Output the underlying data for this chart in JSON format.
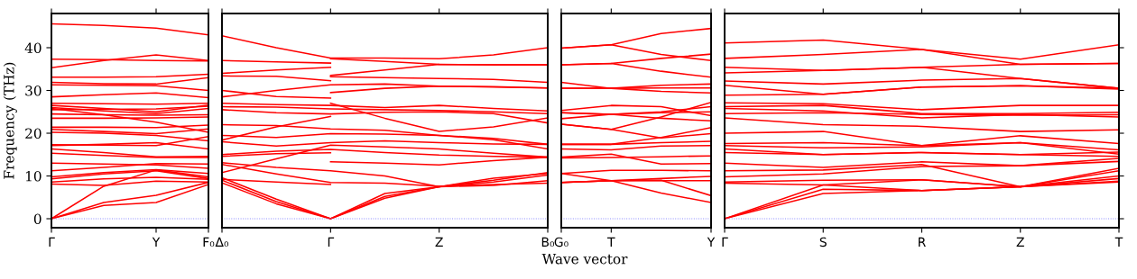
{
  "chart_data": [
    {
      "type": "line",
      "ylabel": "Frequency (THz)",
      "categories": [
        "Γ",
        null,
        "Y",
        "F₀"
      ],
      "ylim": [
        -2.1,
        48
      ],
      "yticks": [
        0,
        10,
        20,
        30,
        40
      ],
      "ref_lines": [
        {
          "axis": "y",
          "value": 0,
          "color": "#8080ff",
          "line_style": "dotted"
        }
      ],
      "series": [
        {
          "color": "#ff0000",
          "values": [
            45.6,
            45.2,
            44.6,
            43.0
          ]
        },
        {
          "color": "#ff0000",
          "values": [
            37.3,
            37.2,
            37.0,
            36.9
          ]
        },
        {
          "color": "#ff0000",
          "values": [
            35.3,
            37.0,
            38.3,
            37.0
          ]
        },
        {
          "color": "#ff0000",
          "values": [
            33.1,
            33.1,
            33.2,
            33.8
          ]
        },
        {
          "color": "#ff0000",
          "values": [
            31.9,
            31.6,
            31.5,
            33.0
          ]
        },
        {
          "color": "#ff0000",
          "values": [
            31.3,
            31.2,
            31.1,
            30.0
          ]
        },
        {
          "color": "#ff0000",
          "values": [
            28.5,
            29.0,
            29.4,
            28.3
          ]
        },
        {
          "color": "#ff0000",
          "values": [
            27.0,
            26.9,
            26.8,
            27.0
          ]
        },
        {
          "color": "#ff0000",
          "values": [
            26.5,
            25.8,
            25.0,
            26.6
          ]
        },
        {
          "color": "#ff0000",
          "values": [
            26.0,
            25.2,
            24.6,
            25.8
          ]
        },
        {
          "color": "#ff0000",
          "values": [
            25.5,
            25.6,
            25.7,
            26.3
          ]
        },
        {
          "color": "#ff0000",
          "values": [
            24.5,
            24.3,
            24.2,
            24.3
          ]
        },
        {
          "color": "#ff0000",
          "values": [
            23.5,
            23.5,
            23.6,
            23.8
          ]
        },
        {
          "color": "#ff0000",
          "values": [
            25.8,
            24.3,
            22.6,
            20.2
          ]
        },
        {
          "color": "#ff0000",
          "values": [
            21.4,
            21.4,
            21.3,
            21.9
          ]
        },
        {
          "color": "#ff0000",
          "values": [
            20.9,
            20.4,
            19.9,
            21.0
          ]
        },
        {
          "color": "#ff0000",
          "values": [
            20.2,
            20.0,
            19.5,
            18.2
          ]
        },
        {
          "color": "#ff0000",
          "values": [
            17.3,
            17.2,
            17.1,
            19.2
          ]
        },
        {
          "color": "#ff0000",
          "values": [
            17.1,
            17.4,
            17.8,
            16.3
          ]
        },
        {
          "color": "#ff0000",
          "values": [
            16.3,
            15.5,
            14.5,
            14.6
          ]
        },
        {
          "color": "#ff0000",
          "values": [
            15.3,
            14.8,
            14.3,
            14.3
          ]
        },
        {
          "color": "#ff0000",
          "values": [
            13.0,
            12.8,
            12.6,
            11.8
          ]
        },
        {
          "color": "#ff0000",
          "values": [
            11.2,
            12.0,
            12.9,
            12.8
          ]
        },
        {
          "color": "#ff0000",
          "values": [
            9.8,
            10.8,
            11.5,
            10.6
          ]
        },
        {
          "color": "#ff0000",
          "values": [
            9.3,
            10.5,
            11.2,
            9.4
          ]
        },
        {
          "color": "#ff0000",
          "values": [
            8.6,
            9.3,
            9.7,
            9.2
          ]
        },
        {
          "color": "#ff0000",
          "values": [
            8.1,
            7.8,
            8.8,
            8.6
          ]
        },
        {
          "color": "#ff0000",
          "values": [
            0,
            7.6,
            11.4,
            9.8
          ]
        },
        {
          "color": "#ff0000",
          "values": [
            0,
            3.8,
            5.5,
            8.5
          ]
        },
        {
          "color": "#ff0000",
          "values": [
            0,
            3.1,
            3.8,
            8.0
          ]
        }
      ]
    },
    {
      "type": "line",
      "categories": [
        "Δ₀",
        null,
        "Γ",
        null,
        "Z",
        null,
        "B₀"
      ],
      "ylim": [
        -2.1,
        48
      ],
      "yticks": [
        0,
        10,
        20,
        30,
        40
      ],
      "tick_labels": "x",
      "ref_lines": [
        {
          "axis": "y",
          "value": 0,
          "color": "#8080ff",
          "line_style": "dotted"
        }
      ],
      "series": [
        {
          "color": "#ff0000",
          "values": [
            42.8,
            40.0,
            37.6,
            37.6,
            37.4,
            38.3,
            40.0
          ]
        },
        {
          "color": "#ff0000",
          "values": [
            37.0,
            36.7,
            36.4,
            null,
            null,
            null,
            null
          ]
        },
        {
          "color": "#ff0000",
          "values": [
            null,
            null,
            37.4,
            36.8,
            36.1,
            36.0,
            36.0
          ]
        },
        {
          "color": "#ff0000",
          "values": [
            null,
            null,
            33.5,
            34.8,
            36.1,
            36.0,
            36.0
          ]
        },
        {
          "color": "#ff0000",
          "values": [
            34.0,
            34.8,
            35.4,
            null,
            null,
            null,
            null
          ]
        },
        {
          "color": "#ff0000",
          "values": [
            33.4,
            33.3,
            32.3,
            null,
            null,
            null,
            null
          ]
        },
        {
          "color": "#ff0000",
          "values": [
            null,
            null,
            33.2,
            33.0,
            32.8,
            32.6,
            31.9
          ]
        },
        {
          "color": "#ff0000",
          "values": [
            30.0,
            28.6,
            28.2,
            null,
            null,
            null,
            null
          ]
        },
        {
          "color": "#ff0000",
          "values": [
            28.5,
            30.0,
            31.3,
            31.5,
            31.0,
            30.9,
            30.6
          ]
        },
        {
          "color": "#ff0000",
          "values": [
            null,
            null,
            29.5,
            30.5,
            31.0,
            30.8,
            30.6
          ]
        },
        {
          "color": "#ff0000",
          "values": [
            27.0,
            26.7,
            26.5,
            26.0,
            26.5,
            25.8,
            25.2
          ]
        },
        {
          "color": "#ff0000",
          "values": [
            null,
            null,
            27.0,
            23.5,
            20.4,
            21.5,
            23.6
          ]
        },
        {
          "color": "#ff0000",
          "values": [
            26.2,
            26.1,
            25.7,
            25.5,
            25.3,
            25.0,
            24.6
          ]
        },
        {
          "color": "#ff0000",
          "values": [
            25.5,
            24.8,
            24.5,
            24.9,
            25.0,
            24.6,
            22.4
          ]
        },
        {
          "color": "#ff0000",
          "values": [
            18.4,
            21.5,
            23.9,
            null,
            null,
            null,
            null
          ]
        },
        {
          "color": "#ff0000",
          "values": [
            22.0,
            21.8,
            21.0,
            20.7,
            19.5,
            18.5,
            16.3
          ]
        },
        {
          "color": "#ff0000",
          "values": [
            19.5,
            19.0,
            19.9,
            19.8,
            19.5,
            18.8,
            17.4
          ]
        },
        {
          "color": "#ff0000",
          "values": [
            18.0,
            17.0,
            17.8,
            18.2,
            17.8,
            17.5,
            17.4
          ]
        },
        {
          "color": "#ff0000",
          "values": [
            15.0,
            15.8,
            16.2,
            15.5,
            14.9,
            14.6,
            14.4
          ]
        },
        {
          "color": "#ff0000",
          "values": [
            14.6,
            15.2,
            15.4,
            null,
            null,
            null,
            null
          ]
        },
        {
          "color": "#ff0000",
          "values": [
            10.8,
            14.0,
            17.2,
            16.8,
            16.3,
            15.3,
            14.4
          ]
        },
        {
          "color": "#ff0000",
          "values": [
            13.1,
            12.0,
            11.2,
            10.0,
            7.5,
            9.5,
            10.6
          ]
        },
        {
          "color": "#ff0000",
          "values": [
            null,
            null,
            13.3,
            13.0,
            12.6,
            13.6,
            14.4
          ]
        },
        {
          "color": "#ff0000",
          "values": [
            12.7,
            10.5,
            8.5,
            8.3,
            7.6,
            8.0,
            8.3
          ]
        },
        {
          "color": "#ff0000",
          "values": [
            9.2,
            8.6,
            8.0,
            null,
            null,
            null,
            null
          ]
        },
        {
          "color": "#ff0000",
          "values": [
            9.6,
            4.6,
            0,
            5.9,
            7.5,
            9.0,
            10.8
          ]
        },
        {
          "color": "#ff0000",
          "values": [
            9.0,
            4.0,
            0,
            5.2,
            7.5,
            8.6,
            10.2
          ]
        },
        {
          "color": "#ff0000",
          "values": [
            8.4,
            3.5,
            0,
            4.8,
            7.5,
            7.8,
            8.9
          ]
        }
      ]
    },
    {
      "type": "line",
      "xlabel": "Wave vector",
      "categories": [
        "G₀",
        "T",
        null,
        "Y"
      ],
      "ylim": [
        -2.1,
        48
      ],
      "yticks": [
        0,
        10,
        20,
        30,
        40
      ],
      "tick_labels": "x",
      "ref_lines": [
        {
          "axis": "y",
          "value": 0,
          "color": "#8080ff",
          "line_style": "dotted"
        }
      ],
      "series": [
        {
          "color": "#ff0000",
          "values": [
            39.9,
            40.7,
            43.3,
            44.5
          ]
        },
        {
          "color": "#ff0000",
          "values": [
            39.9,
            40.7,
            38.4,
            37.0
          ]
        },
        {
          "color": "#ff0000",
          "values": [
            36.0,
            36.3,
            37.5,
            38.5
          ]
        },
        {
          "color": "#ff0000",
          "values": [
            36.0,
            36.3,
            34.5,
            33.1
          ]
        },
        {
          "color": "#ff0000",
          "values": [
            31.9,
            30.5,
            31.2,
            31.5
          ]
        },
        {
          "color": "#ff0000",
          "values": [
            30.5,
            30.5,
            30.6,
            30.6
          ]
        },
        {
          "color": "#ff0000",
          "values": [
            30.5,
            30.5,
            29.8,
            29.4
          ]
        },
        {
          "color": "#ff0000",
          "values": [
            25.3,
            26.5,
            26.2,
            24.1
          ]
        },
        {
          "color": "#ff0000",
          "values": [
            24.8,
            24.4,
            25.0,
            26.2
          ]
        },
        {
          "color": "#ff0000",
          "values": [
            23.4,
            24.4,
            24.8,
            25.0
          ]
        },
        {
          "color": "#ff0000",
          "values": [
            24.8,
            24.4,
            23.5,
            22.9
          ]
        },
        {
          "color": "#ff0000",
          "values": [
            22.1,
            20.9,
            23.8,
            27.2
          ]
        },
        {
          "color": "#ff0000",
          "values": [
            22.1,
            20.9,
            18.9,
            19.9
          ]
        },
        {
          "color": "#ff0000",
          "values": [
            17.4,
            17.4,
            19.0,
            21.3
          ]
        },
        {
          "color": "#ff0000",
          "values": [
            17.4,
            17.4,
            17.8,
            18.1
          ]
        },
        {
          "color": "#ff0000",
          "values": [
            16.3,
            16.1,
            17.0,
            17.1
          ]
        },
        {
          "color": "#ff0000",
          "values": [
            14.4,
            15.1,
            12.8,
            12.9
          ]
        },
        {
          "color": "#ff0000",
          "values": [
            14.2,
            14.3,
            14.5,
            14.7
          ]
        },
        {
          "color": "#ff0000",
          "values": [
            10.6,
            11.3,
            11.3,
            11.2
          ]
        },
        {
          "color": "#ff0000",
          "values": [
            10.6,
            8.9,
            6.0,
            3.8
          ]
        },
        {
          "color": "#ff0000",
          "values": [
            8.5,
            8.9,
            9.0,
            5.4
          ]
        },
        {
          "color": "#ff0000",
          "values": [
            8.5,
            8.9,
            9.4,
            9.9
          ]
        },
        {
          "color": "#ff0000",
          "values": [
            8.5,
            8.9,
            8.9,
            8.9
          ]
        }
      ]
    },
    {
      "type": "line",
      "categories": [
        "Γ",
        "S",
        "R",
        "Z",
        "T"
      ],
      "ylim": [
        -2.1,
        48
      ],
      "yticks": [
        0,
        10,
        20,
        30,
        40
      ],
      "tick_labels": "x",
      "ref_lines": [
        {
          "axis": "y",
          "value": 0,
          "color": "#8080ff",
          "line_style": "dotted"
        }
      ],
      "series": [
        {
          "color": "#ff0000",
          "values": [
            41.1,
            41.8,
            39.6,
            37.3,
            40.7
          ]
        },
        {
          "color": "#ff0000",
          "values": [
            37.5,
            38.4,
            39.6,
            36.1,
            36.3
          ]
        },
        {
          "color": "#ff0000",
          "values": [
            35.4,
            34.7,
            35.4,
            36.1,
            36.3
          ]
        },
        {
          "color": "#ff0000",
          "values": [
            34.1,
            34.7,
            35.4,
            32.8,
            30.5
          ]
        },
        {
          "color": "#ff0000",
          "values": [
            32.2,
            31.5,
            32.4,
            32.8,
            30.5
          ]
        },
        {
          "color": "#ff0000",
          "values": [
            31.2,
            29.1,
            30.8,
            31.1,
            30.5
          ]
        },
        {
          "color": "#ff0000",
          "values": [
            28.9,
            29.1,
            30.8,
            31.1,
            30.3
          ]
        },
        {
          "color": "#ff0000",
          "values": [
            27.1,
            26.9,
            25.5,
            26.5,
            26.5
          ]
        },
        {
          "color": "#ff0000",
          "values": [
            26.2,
            26.5,
            24.6,
            24.6,
            24.9
          ]
        },
        {
          "color": "#ff0000",
          "values": [
            25.8,
            25.2,
            23.6,
            24.4,
            23.8
          ]
        },
        {
          "color": "#ff0000",
          "values": [
            24.6,
            24.8,
            24.4,
            24.2,
            24.3
          ]
        },
        {
          "color": "#ff0000",
          "values": [
            23.6,
            22.0,
            21.6,
            20.4,
            20.8
          ]
        },
        {
          "color": "#ff0000",
          "values": [
            20.0,
            20.4,
            17.1,
            19.4,
            17.6
          ]
        },
        {
          "color": "#ff0000",
          "values": [
            17.6,
            17.8,
            17.1,
            17.8,
            16.1
          ]
        },
        {
          "color": "#ff0000",
          "values": [
            17.1,
            16.6,
            16.8,
            17.8,
            15.1
          ]
        },
        {
          "color": "#ff0000",
          "values": [
            16.3,
            15.0,
            15.5,
            15.0,
            15.6
          ]
        },
        {
          "color": "#ff0000",
          "values": [
            15.5,
            15.0,
            15.5,
            15.0,
            14.6
          ]
        },
        {
          "color": "#ff0000",
          "values": [
            13.0,
            12.0,
            13.3,
            12.4,
            14.1
          ]
        },
        {
          "color": "#ff0000",
          "values": [
            11.2,
            11.4,
            12.7,
            7.5,
            11.2
          ]
        },
        {
          "color": "#ff0000",
          "values": [
            9.8,
            10.5,
            12.2,
            12.4,
            13.4
          ]
        },
        {
          "color": "#ff0000",
          "values": [
            8.6,
            9.0,
            9.1,
            7.5,
            8.6
          ]
        },
        {
          "color": "#ff0000",
          "values": [
            8.3,
            7.9,
            6.6,
            7.5,
            9.4
          ]
        },
        {
          "color": "#ff0000",
          "values": [
            0,
            7.9,
            9.1,
            7.5,
            10.0
          ]
        },
        {
          "color": "#ff0000",
          "values": [
            0,
            6.9,
            6.6,
            7.5,
            11.8
          ]
        },
        {
          "color": "#ff0000",
          "values": [
            0,
            5.9,
            6.6,
            7.5,
            8.8
          ]
        }
      ]
    }
  ]
}
